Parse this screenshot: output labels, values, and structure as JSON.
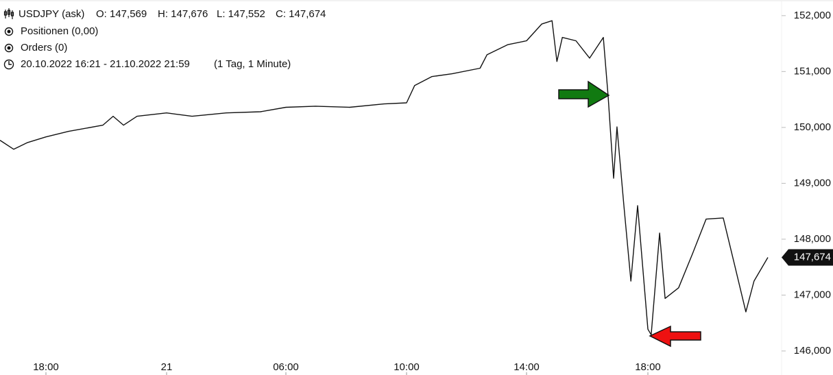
{
  "chart_data": {
    "type": "line",
    "header": {
      "symbol": "USDJPY (ask)",
      "open": "O: 147,569",
      "high": "H: 147,676",
      "low": "L: 147,552",
      "close": "C: 147,674",
      "positions": "Positionen (0,00)",
      "orders": "Orders (0)",
      "range": "20.10.2022 16:21 - 21.10.2022 21:59",
      "period": "(1 Tag, 1 Minute)"
    },
    "x": [
      16.35,
      16.84,
      17.34,
      18,
      19.13,
      20.83,
      21.34,
      21.86,
      22.53,
      24,
      25.28,
      27.0,
      28.72,
      30,
      30.98,
      32.11,
      33.25,
      34,
      34.27,
      34.84,
      35.52,
      36.45,
      36.68,
      37.37,
      38,
      38.5,
      38.84,
      39.0,
      39.18,
      39.63,
      40.08,
      40.53,
      40.69,
      40.87,
      40.98,
      41.21,
      41.44,
      41.66,
      42,
      42.11,
      42.39,
      42.57,
      43.02,
      43.48,
      43.93,
      44.5,
      44.84,
      45.25,
      45.52,
      45.98
    ],
    "series": [
      {
        "name": "USDJPY (ask)",
        "color": "#111111",
        "values": [
          149.77,
          149.61,
          149.73,
          149.83,
          149.93,
          150.04,
          150.2,
          150.04,
          150.2,
          150.26,
          150.2,
          150.26,
          150.28,
          150.36,
          150.38,
          150.36,
          150.42,
          150.44,
          150.75,
          150.91,
          150.96,
          151.06,
          151.3,
          151.48,
          151.55,
          151.85,
          151.91,
          151.18,
          151.61,
          151.55,
          151.24,
          151.61,
          150.56,
          149.09,
          150.01,
          148.6,
          147.25,
          148.6,
          146.39,
          146.29,
          148.11,
          146.94,
          147.13,
          147.74,
          148.36,
          148.38,
          147.62,
          146.7,
          147.25,
          147.674
        ]
      }
    ],
    "xlim": [
      16.35,
      45.98
    ],
    "xticks": [
      {
        "value": 18,
        "label": "18:00"
      },
      {
        "value": 24,
        "label": "21"
      },
      {
        "value": 30,
        "label": "06:00"
      },
      {
        "value": 34,
        "label": "10:00"
      },
      {
        "value": 38,
        "label": "14:00"
      },
      {
        "value": 42,
        "label": "18:00"
      }
    ],
    "ylim": [
      145.57,
      152.28
    ],
    "yticks": [
      {
        "value": 146,
        "label": "146,000"
      },
      {
        "value": 147,
        "label": "147,000"
      },
      {
        "value": 148,
        "label": "148,000"
      },
      {
        "value": 149,
        "label": "149,000"
      },
      {
        "value": 150,
        "label": "150,000"
      },
      {
        "value": 151,
        "label": "151,000"
      },
      {
        "value": 152,
        "label": "152,000"
      }
    ],
    "last_price": {
      "value": 147.674,
      "label": "147,674"
    }
  }
}
